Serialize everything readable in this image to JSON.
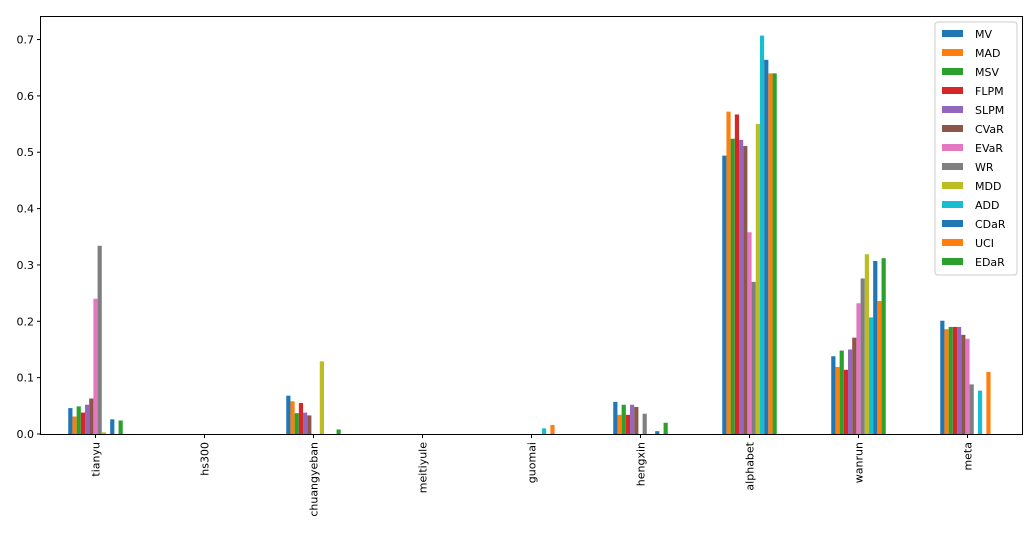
{
  "chart_data": {
    "type": "bar",
    "categories": [
      "tianyu",
      "hs300",
      "chuangyeban",
      "meitiyule",
      "guomai",
      "hengxin",
      "alphabet",
      "wanrun",
      "meta"
    ],
    "ylim": [
      0,
      0.74
    ],
    "yticks": [
      0.0,
      0.1,
      0.2,
      0.3,
      0.4,
      0.5,
      0.6,
      0.7
    ],
    "ytick_labels": [
      "0.0",
      "0.1",
      "0.2",
      "0.3",
      "0.4",
      "0.5",
      "0.6",
      "0.7"
    ],
    "legend_position": "top-right",
    "series": [
      {
        "name": "MV",
        "color": "#1f77b4",
        "values": [
          0.046,
          0,
          0.068,
          0,
          0,
          0.057,
          0.494,
          0.138,
          0.201
        ]
      },
      {
        "name": "MAD",
        "color": "#ff7f0e",
        "values": [
          0.031,
          0,
          0.058,
          0,
          0,
          0.034,
          0.572,
          0.119,
          0.186
        ]
      },
      {
        "name": "MSV",
        "color": "#2ca02c",
        "values": [
          0.049,
          0,
          0.037,
          0,
          0,
          0.052,
          0.524,
          0.148,
          0.19
        ]
      },
      {
        "name": "FLPM",
        "color": "#d62728",
        "values": [
          0.038,
          0,
          0.055,
          0,
          0,
          0.034,
          0.567,
          0.114,
          0.19
        ]
      },
      {
        "name": "SLPM",
        "color": "#9467bd",
        "values": [
          0.052,
          0,
          0.038,
          0,
          0,
          0.052,
          0.522,
          0.15,
          0.19
        ]
      },
      {
        "name": "CVaR",
        "color": "#8c564b",
        "values": [
          0.063,
          0,
          0.033,
          0,
          0,
          0.048,
          0.511,
          0.171,
          0.176
        ]
      },
      {
        "name": "EVaR",
        "color": "#e377c2",
        "values": [
          0.24,
          0,
          0,
          0,
          0,
          0,
          0.358,
          0.232,
          0.169
        ]
      },
      {
        "name": "WR",
        "color": "#7f7f7f",
        "values": [
          0.334,
          0,
          0,
          0,
          0,
          0.036,
          0.27,
          0.276,
          0.088
        ]
      },
      {
        "name": "MDD",
        "color": "#bcbd22",
        "values": [
          0.003,
          0,
          0.129,
          0,
          0,
          0,
          0.55,
          0.319,
          0
        ]
      },
      {
        "name": "ADD",
        "color": "#17becf",
        "values": [
          0,
          0,
          0,
          0,
          0.01,
          0,
          0.707,
          0.207,
          0.077
        ]
      },
      {
        "name": "CDaR",
        "color": "#1f77b4",
        "values": [
          0.026,
          0,
          0,
          0,
          0,
          0.005,
          0.664,
          0.307,
          0
        ]
      },
      {
        "name": "UCI",
        "color": "#ff7f0e",
        "values": [
          0,
          0,
          0,
          0,
          0.016,
          0,
          0.64,
          0.236,
          0.11
        ]
      },
      {
        "name": "EDaR",
        "color": "#2ca02c",
        "values": [
          0.024,
          0,
          0.008,
          0,
          0,
          0.02,
          0.64,
          0.312,
          0
        ]
      }
    ]
  }
}
